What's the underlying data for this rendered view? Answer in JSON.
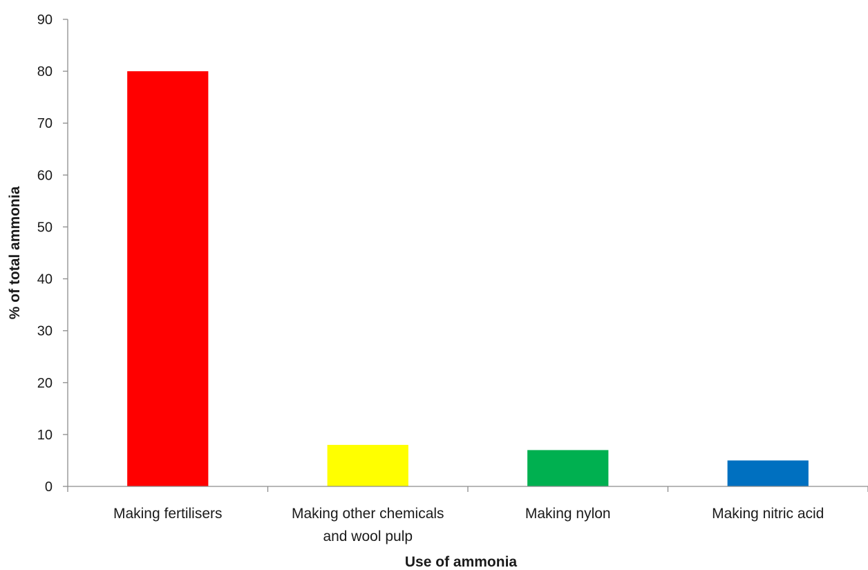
{
  "chart_data": {
    "type": "bar",
    "categories": [
      [
        "Making fertilisers"
      ],
      [
        "Making other chemicals",
        "and wool pulp"
      ],
      [
        "Making nylon"
      ],
      [
        "Making nitric acid"
      ]
    ],
    "values": [
      80,
      8,
      7,
      5
    ],
    "colors": [
      "#ff0000",
      "#ffff00",
      "#00b050",
      "#0070c0"
    ],
    "xlabel": "Use of ammonia",
    "ylabel": "% of total ammonia",
    "ylim": [
      0,
      90
    ],
    "yticks": [
      0,
      10,
      20,
      30,
      40,
      50,
      60,
      70,
      80,
      90
    ],
    "grid": false,
    "legend": "none"
  }
}
